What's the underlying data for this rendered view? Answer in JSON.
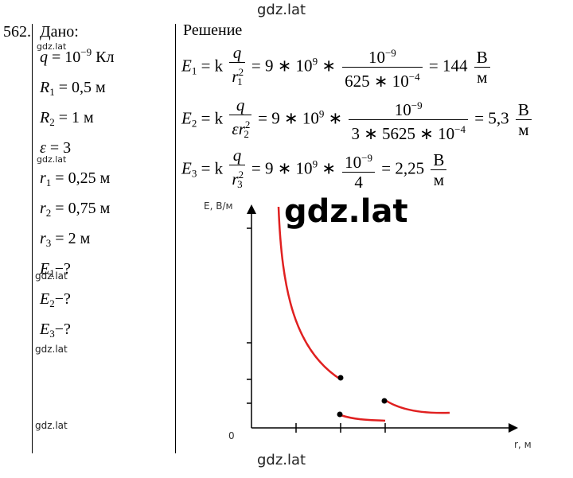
{
  "watermarks": {
    "top": "gdz.lat",
    "bottom": "gdz.lat",
    "big": "gdz.lat",
    "small1": "gdz.lat",
    "small2": "gdz.lat",
    "side1": "gdz.lat",
    "side2": "gdz.lat",
    "side3": "gdz.lat"
  },
  "problem": {
    "number": "562.",
    "given_title": "Дано:",
    "given": [
      {
        "sym": "q",
        "sub": "",
        "rhs": " = 10",
        "sup": "−9",
        "rest": " Кл"
      },
      {
        "sym": "R",
        "sub": "1",
        "rhs": " = 0,5 м",
        "sup": "",
        "rest": ""
      },
      {
        "sym": "R",
        "sub": "2",
        "rhs": " = 1 м",
        "sup": "",
        "rest": ""
      },
      {
        "sym": "ε",
        "sub": "",
        "rhs": " = 3",
        "sup": "",
        "rest": ""
      },
      {
        "sym": "r",
        "sub": "1",
        "rhs": " = 0,25 м",
        "sup": "",
        "rest": ""
      },
      {
        "sym": "r",
        "sub": "2",
        "rhs": " = 0,75 м",
        "sup": "",
        "rest": ""
      },
      {
        "sym": "r",
        "sub": "3",
        "rhs": " = 2 м",
        "sup": "",
        "rest": ""
      },
      {
        "sym": "E",
        "sub": "1",
        "rhs": "−?",
        "sup": "",
        "rest": ""
      },
      {
        "sym": "E",
        "sub": "2",
        "rhs": "−?",
        "sup": "",
        "rest": ""
      },
      {
        "sym": "E",
        "sub": "3",
        "rhs": "−?",
        "sup": "",
        "rest": ""
      }
    ]
  },
  "solution": {
    "title": "Решение",
    "eq1": {
      "lhs": "E",
      "lhs_sub": "1",
      "k": " = k",
      "q": "q",
      "den_r": "r",
      "den_sub": "1",
      "den_sup": "2",
      "mid": " = 9 ∗ 10",
      "mid_sup": "9",
      "star": " ∗",
      "num": "10",
      "num_sup": "−9",
      "den": "625 ∗ 10",
      "den2_sup": "−4",
      "result": " = 144",
      "unit_num": "В",
      "unit_den": "м"
    },
    "eq2": {
      "lhs": "E",
      "lhs_sub": "2",
      "k": " = k",
      "q": "q",
      "den_pre": "εr",
      "den_sub": "2",
      "den_sup": "2",
      "mid": " = 9 ∗ 10",
      "mid_sup": "9",
      "star": " ∗",
      "num": "10",
      "num_sup": "−9",
      "den": "3 ∗ 5625 ∗ 10",
      "den2_sup": "−4",
      "result": " = 5,3",
      "unit_num": "В",
      "unit_den": "м"
    },
    "eq3": {
      "lhs": "E",
      "lhs_sub": "3",
      "k": " = k",
      "q": "q",
      "den_r": "r",
      "den_sub": "3",
      "den_sup": "2",
      "mid": " = 9 ∗ 10",
      "mid_sup": "9",
      "star": " ∗",
      "num": "10",
      "num_sup": "−9",
      "den": "4",
      "result": " = 2,25",
      "unit_num": "В",
      "unit_den": "м"
    }
  },
  "graph": {
    "y_label": "E, В/м",
    "x_label": "r, м",
    "origin": "0",
    "curve_color": "#e02020"
  }
}
